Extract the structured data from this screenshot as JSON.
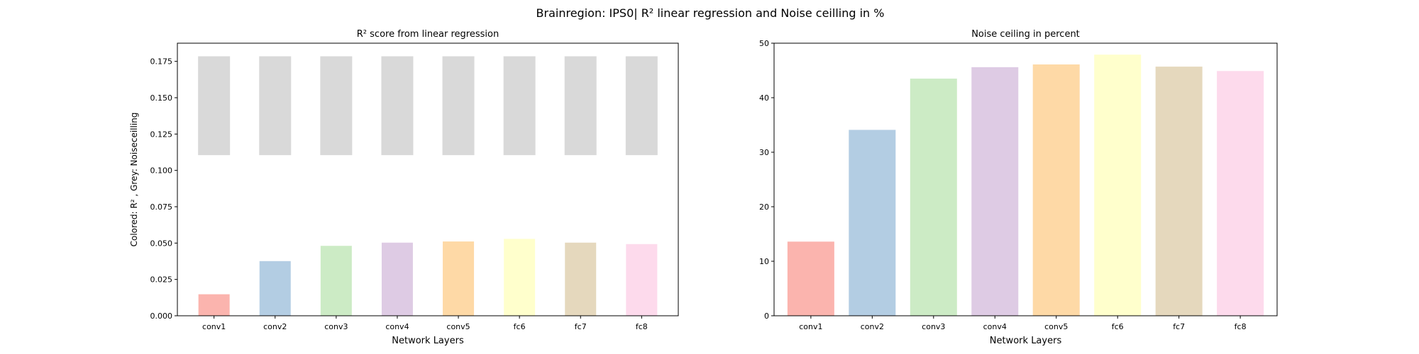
{
  "suptitle": "Brainregion: IPS0| R² linear regression and Noise ceilling in %",
  "chart_data": [
    {
      "type": "bar",
      "title": "R² score from linear regression",
      "xlabel": "Network Layers",
      "ylabel": "Colored: R² , Grey: Noiseceilling",
      "categories": [
        "conv1",
        "conv2",
        "conv3",
        "conv4",
        "conv5",
        "fc6",
        "fc7",
        "fc8"
      ],
      "ylim": [
        0,
        0.1875
      ],
      "yticks": [
        "0.000",
        "0.025",
        "0.050",
        "0.075",
        "0.100",
        "0.125",
        "0.150",
        "0.175"
      ],
      "grid": false,
      "series": [
        {
          "role": "R²",
          "values": [
            0.0148,
            0.0376,
            0.0481,
            0.0503,
            0.0511,
            0.0529,
            0.0503,
            0.0493
          ],
          "colors": [
            "#fbb4ae",
            "#b3cde3",
            "#ccebc5",
            "#decbe4",
            "#fed9a6",
            "#ffffcc",
            "#e5d8bd",
            "#fddaec"
          ]
        },
        {
          "role": "Noiseceilling",
          "bottom": [
            0.1105,
            0.1105,
            0.1105,
            0.1105,
            0.1105,
            0.1105,
            0.1105,
            0.1105
          ],
          "values": [
            0.1785,
            0.1785,
            0.1785,
            0.1785,
            0.1785,
            0.1785,
            0.1785,
            0.1785
          ],
          "color": "#d9d9d9"
        }
      ]
    },
    {
      "type": "bar",
      "title": "Noise ceiling in percent",
      "xlabel": "Network Layers",
      "ylabel": "",
      "categories": [
        "conv1",
        "conv2",
        "conv3",
        "conv4",
        "conv5",
        "fc6",
        "fc7",
        "fc8"
      ],
      "ylim": [
        0,
        50
      ],
      "yticks": [
        "0",
        "10",
        "20",
        "30",
        "40",
        "50"
      ],
      "grid": false,
      "series": [
        {
          "values": [
            13.6,
            34.1,
            43.5,
            45.6,
            46.1,
            47.9,
            45.7,
            44.9
          ],
          "colors": [
            "#fbb4ae",
            "#b3cde3",
            "#ccebc5",
            "#decbe4",
            "#fed9a6",
            "#ffffcc",
            "#e5d8bd",
            "#fddaec"
          ]
        }
      ]
    }
  ]
}
